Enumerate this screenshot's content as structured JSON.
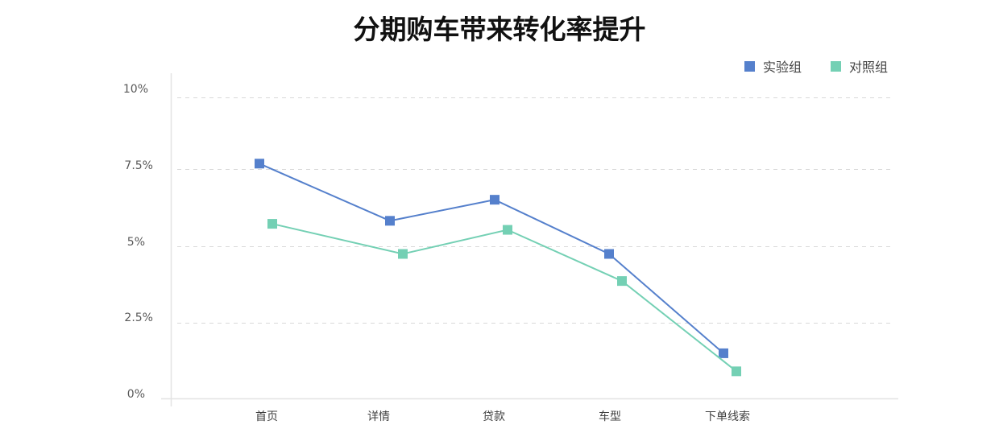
{
  "title": "分期购车带来转化率提升",
  "legend": [
    {
      "label": "实验组",
      "color": "#5580CC"
    },
    {
      "label": "对照组",
      "color": "#74D0B4"
    }
  ],
  "y_axis": {
    "ticks": [
      "0%",
      "2.5%",
      "5%",
      "7.5%",
      "10%"
    ]
  },
  "x_axis": {
    "ticks": [
      "首页",
      "详情",
      "贷款",
      "车型",
      "下单线索"
    ]
  },
  "chart_data": {
    "type": "line",
    "title": "分期购车带来转化率提升",
    "xlabel": "",
    "ylabel": "",
    "categories": [
      "首页",
      "详情",
      "贷款",
      "车型",
      "下单线索"
    ],
    "series": [
      {
        "name": "实验组",
        "color": "#5580CC",
        "marker": "square",
        "values": [
          7.8,
          5.9,
          6.6,
          4.8,
          1.5
        ]
      },
      {
        "name": "对照组",
        "color": "#74D0B4",
        "marker": "square",
        "values": [
          5.8,
          4.8,
          5.6,
          3.9,
          0.9
        ]
      }
    ],
    "y_unit": "%",
    "ylim": [
      0,
      10
    ],
    "yticks": [
      0,
      2.5,
      5,
      7.5,
      10
    ],
    "grid": {
      "horizontal": true,
      "style": "dashed"
    },
    "legend_position": "top-right"
  }
}
